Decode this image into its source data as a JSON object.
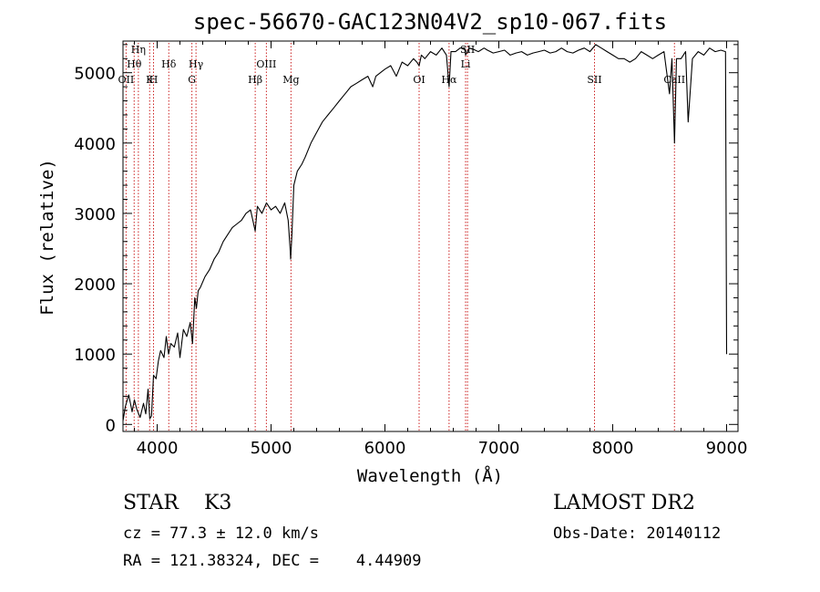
{
  "chart_data": {
    "type": "line",
    "title": "spec-56670-GAC123N04V2_sp10-067.fits",
    "xlabel": "Wavelength (Å)",
    "ylabel": "Flux (relative)",
    "xlim": [
      3700,
      9100
    ],
    "ylim": [
      -100,
      5450
    ],
    "x_ticks": [
      4000,
      5000,
      6000,
      7000,
      8000,
      9000
    ],
    "x_tick_labels": [
      "4000",
      "5000",
      "6000",
      "7000",
      "8000",
      "9000"
    ],
    "y_ticks": [
      0,
      1000,
      2000,
      3000,
      4000,
      5000
    ],
    "y_tick_labels": [
      "0",
      "1000",
      "2000",
      "3000",
      "4000",
      "5000"
    ],
    "grid": false,
    "series": [
      {
        "name": "spectrum",
        "x": [
          3700,
          3720,
          3750,
          3780,
          3800,
          3820,
          3850,
          3880,
          3900,
          3920,
          3935,
          3950,
          3968,
          3990,
          4010,
          4030,
          4060,
          4080,
          4100,
          4120,
          4150,
          4180,
          4200,
          4230,
          4260,
          4290,
          4310,
          4330,
          4345,
          4360,
          4380,
          4420,
          4460,
          4500,
          4540,
          4580,
          4620,
          4660,
          4700,
          4740,
          4780,
          4820,
          4861,
          4880,
          4920,
          4960,
          5000,
          5040,
          5080,
          5120,
          5150,
          5167,
          5172,
          5183,
          5200,
          5230,
          5270,
          5300,
          5350,
          5400,
          5450,
          5500,
          5550,
          5600,
          5650,
          5700,
          5750,
          5800,
          5850,
          5893,
          5920,
          5960,
          6000,
          6050,
          6100,
          6150,
          6200,
          6250,
          6280,
          6300,
          6320,
          6350,
          6400,
          6450,
          6500,
          6540,
          6563,
          6580,
          6620,
          6660,
          6700,
          6708,
          6740,
          6780,
          6820,
          6870,
          6900,
          6950,
          7000,
          7050,
          7100,
          7150,
          7200,
          7250,
          7300,
          7350,
          7400,
          7450,
          7500,
          7550,
          7600,
          7650,
          7700,
          7750,
          7800,
          7850,
          7900,
          7950,
          8000,
          8050,
          8100,
          8150,
          8200,
          8250,
          8300,
          8350,
          8400,
          8450,
          8498,
          8520,
          8542,
          8560,
          8600,
          8640,
          8662,
          8700,
          8750,
          8800,
          8850,
          8900,
          8950,
          8990,
          9000
        ],
        "y": [
          50,
          250,
          420,
          180,
          350,
          220,
          100,
          300,
          150,
          500,
          80,
          120,
          700,
          650,
          900,
          1050,
          950,
          1250,
          1000,
          1150,
          1100,
          1300,
          950,
          1350,
          1250,
          1450,
          1150,
          1800,
          1650,
          1900,
          1950,
          2100,
          2200,
          2350,
          2450,
          2600,
          2700,
          2800,
          2850,
          2900,
          3000,
          3050,
          2750,
          3100,
          3000,
          3150,
          3050,
          3100,
          3000,
          3150,
          2900,
          2500,
          2350,
          2700,
          3400,
          3600,
          3700,
          3800,
          4000,
          4150,
          4300,
          4400,
          4500,
          4600,
          4700,
          4800,
          4850,
          4900,
          4950,
          4800,
          4950,
          5000,
          5050,
          5100,
          4950,
          5150,
          5100,
          5200,
          5150,
          5100,
          5250,
          5200,
          5300,
          5250,
          5350,
          5250,
          4800,
          5300,
          5300,
          5350,
          5350,
          5250,
          5350,
          5330,
          5300,
          5350,
          5320,
          5280,
          5300,
          5320,
          5250,
          5280,
          5300,
          5250,
          5280,
          5300,
          5320,
          5280,
          5300,
          5350,
          5300,
          5280,
          5320,
          5350,
          5300,
          5400,
          5350,
          5300,
          5250,
          5200,
          5200,
          5150,
          5200,
          5300,
          5250,
          5200,
          5250,
          5300,
          4700,
          5200,
          4000,
          5200,
          5200,
          5300,
          4300,
          5200,
          5300,
          5250,
          5350,
          5300,
          5320,
          5300,
          1000
        ]
      }
    ],
    "line_markers": [
      {
        "label": "Hη",
        "x": 3835
      },
      {
        "label": "Hθ",
        "x": 3798
      },
      {
        "label": "OII",
        "x": 3727
      },
      {
        "label": "Hδ",
        "x": 4102
      },
      {
        "label": "H",
        "x": 3968
      },
      {
        "label": "K",
        "x": 3934
      },
      {
        "label": "Hγ",
        "x": 4341
      },
      {
        "label": "G",
        "x": 4305
      },
      {
        "label": "Hβ",
        "x": 4861
      },
      {
        "label": "OIII",
        "x": 4959
      },
      {
        "label": "Mg",
        "x": 5175
      },
      {
        "label": "OI",
        "x": 6300
      },
      {
        "label": "Hα",
        "x": 6563
      },
      {
        "label": "Li",
        "x": 6708
      },
      {
        "label": "SII",
        "x": 6725
      },
      {
        "label": "SII",
        "x": 7840
      },
      {
        "label": "CaII",
        "x": 8542
      }
    ]
  },
  "info": {
    "class_line": "STAR    K3",
    "cz_line": "cz = 77.3 ± 12.0 km/s",
    "coords_line": "RA = 121.38324, DEC =    4.44909",
    "survey": "LAMOST DR2",
    "obs_date": "Obs-Date: 20140112"
  }
}
